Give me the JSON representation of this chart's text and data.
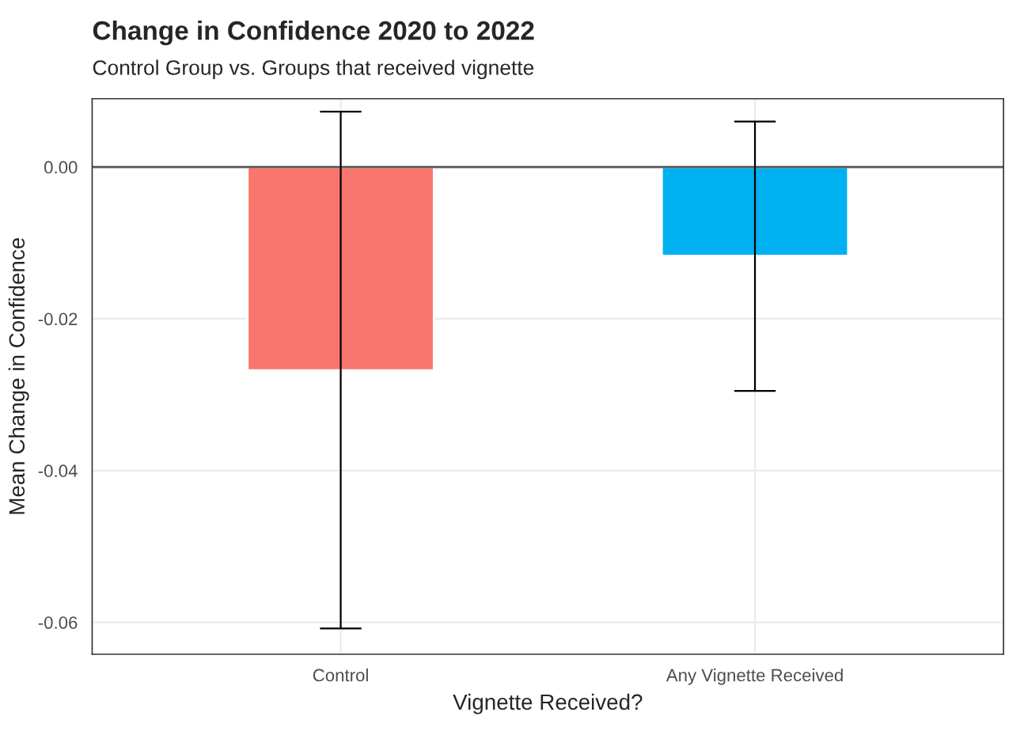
{
  "chart_data": {
    "type": "bar",
    "title": "Change in Confidence 2020 to 2022",
    "subtitle": "Control Group vs. Groups that received vignette",
    "xlabel": "Vignette Received?",
    "ylabel": "Mean Change in Confidence",
    "categories": [
      "Control",
      "Any Vignette Received"
    ],
    "values": [
      -0.0268,
      -0.0117
    ],
    "colors": [
      "#f8766d",
      "#00b0f0"
    ],
    "errors": [
      [
        -0.0608,
        0.0073
      ],
      [
        -0.0295,
        0.006
      ]
    ],
    "ylim": [
      -0.0642,
      0.009
    ],
    "yticks": [
      {
        "value": -0.06,
        "label": "-0.06"
      },
      {
        "value": -0.04,
        "label": "-0.04"
      },
      {
        "value": -0.02,
        "label": "-0.02"
      },
      {
        "value": 0,
        "label": "0.00"
      }
    ],
    "ref_lines": [
      {
        "axis": "y",
        "value": 0,
        "color": "#555555"
      }
    ],
    "grid": true
  }
}
